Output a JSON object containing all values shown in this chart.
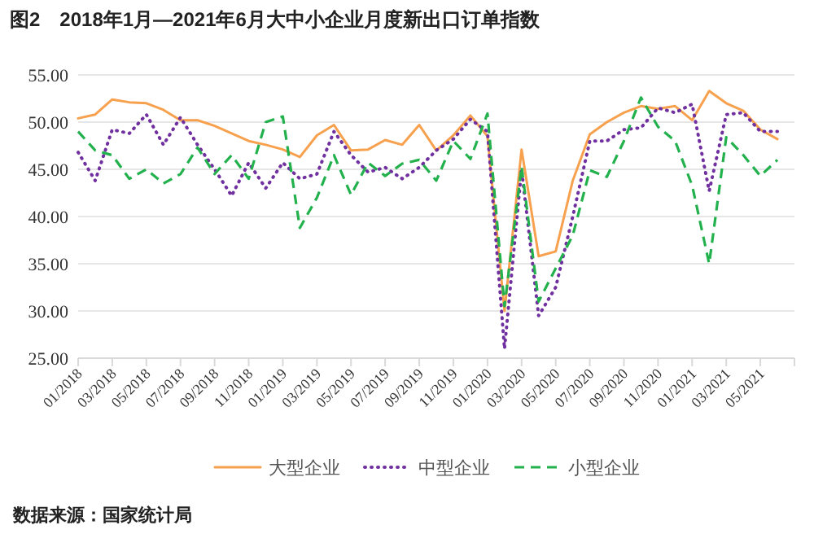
{
  "chart_data": {
    "type": "line",
    "title": "图2　2018年1月—2021年6月大中小企业月度新出口订单指数",
    "categories": [
      "01/2018",
      null,
      "03/2018",
      null,
      "05/2018",
      null,
      "07/2018",
      null,
      "09/2018",
      null,
      "11/2018",
      null,
      "01/2019",
      null,
      "03/2019",
      null,
      "05/2019",
      null,
      "07/2019",
      null,
      "09/2019",
      null,
      "11/2019",
      null,
      "01/2020",
      null,
      "03/2020",
      null,
      "05/2020",
      null,
      "07/2020",
      null,
      "09/2020",
      null,
      "11/2020",
      null,
      "01/2021",
      null,
      "03/2021",
      null,
      "05/2021",
      null
    ],
    "series": [
      {
        "name": "大型企业",
        "color": "#f7a14e",
        "line_style": "solid",
        "values": [
          50.4,
          50.8,
          52.4,
          52.1,
          52.0,
          51.3,
          50.2,
          50.2,
          49.6,
          48.8,
          48.0,
          47.6,
          47.1,
          46.3,
          48.6,
          49.7,
          47.0,
          47.1,
          48.1,
          47.6,
          49.7,
          47.0,
          48.6,
          50.7,
          48.5,
          30.0,
          47.1,
          35.8,
          36.3,
          43.8,
          48.7,
          50.0,
          51.0,
          51.7,
          51.4,
          51.7,
          50.2,
          53.3,
          52.0,
          51.2,
          49.2,
          48.2
        ]
      },
      {
        "name": "中型企业",
        "color": "#7030a0",
        "line_style": "dotted",
        "values": [
          46.8,
          43.8,
          49.2,
          48.8,
          50.8,
          47.6,
          50.5,
          47.6,
          45.0,
          42.2,
          45.7,
          43.0,
          45.7,
          44.0,
          44.5,
          49.0,
          46.5,
          44.7,
          45.2,
          44.0,
          45.2,
          47.0,
          48.2,
          50.3,
          49.0,
          26.0,
          45.0,
          29.5,
          32.5,
          40.0,
          48.0,
          48.0,
          49.2,
          49.4,
          51.5,
          51.0,
          51.9,
          42.7,
          50.8,
          51.0,
          49.0,
          49.0
        ]
      },
      {
        "name": "小型企业",
        "color": "#22b14c",
        "line_style": "dashed",
        "values": [
          49.0,
          47.0,
          46.5,
          44.0,
          45.0,
          43.5,
          44.5,
          47.3,
          44.5,
          46.5,
          44.0,
          50.0,
          50.6,
          38.8,
          42.0,
          46.5,
          42.3,
          45.7,
          44.3,
          45.6,
          46.0,
          43.8,
          48.0,
          46.1,
          50.9,
          30.5,
          45.3,
          31.0,
          34.5,
          38.0,
          44.9,
          44.2,
          48.0,
          52.6,
          49.5,
          48.0,
          43.3,
          35.0,
          48.4,
          46.5,
          44.3,
          46.0
        ]
      }
    ],
    "ylim": [
      25,
      55
    ],
    "yticks": [
      {
        "value": 25,
        "label": "25.00"
      },
      {
        "value": 30,
        "label": "30.00"
      },
      {
        "value": 35,
        "label": "35.00"
      },
      {
        "value": 40,
        "label": "40.00"
      },
      {
        "value": 45,
        "label": "45.00"
      },
      {
        "value": 50,
        "label": "50.00"
      },
      {
        "value": 55,
        "label": "55.00"
      }
    ],
    "grid": "y",
    "legend": "bottom",
    "annotations": [
      "数据来源：国家统计局"
    ]
  }
}
